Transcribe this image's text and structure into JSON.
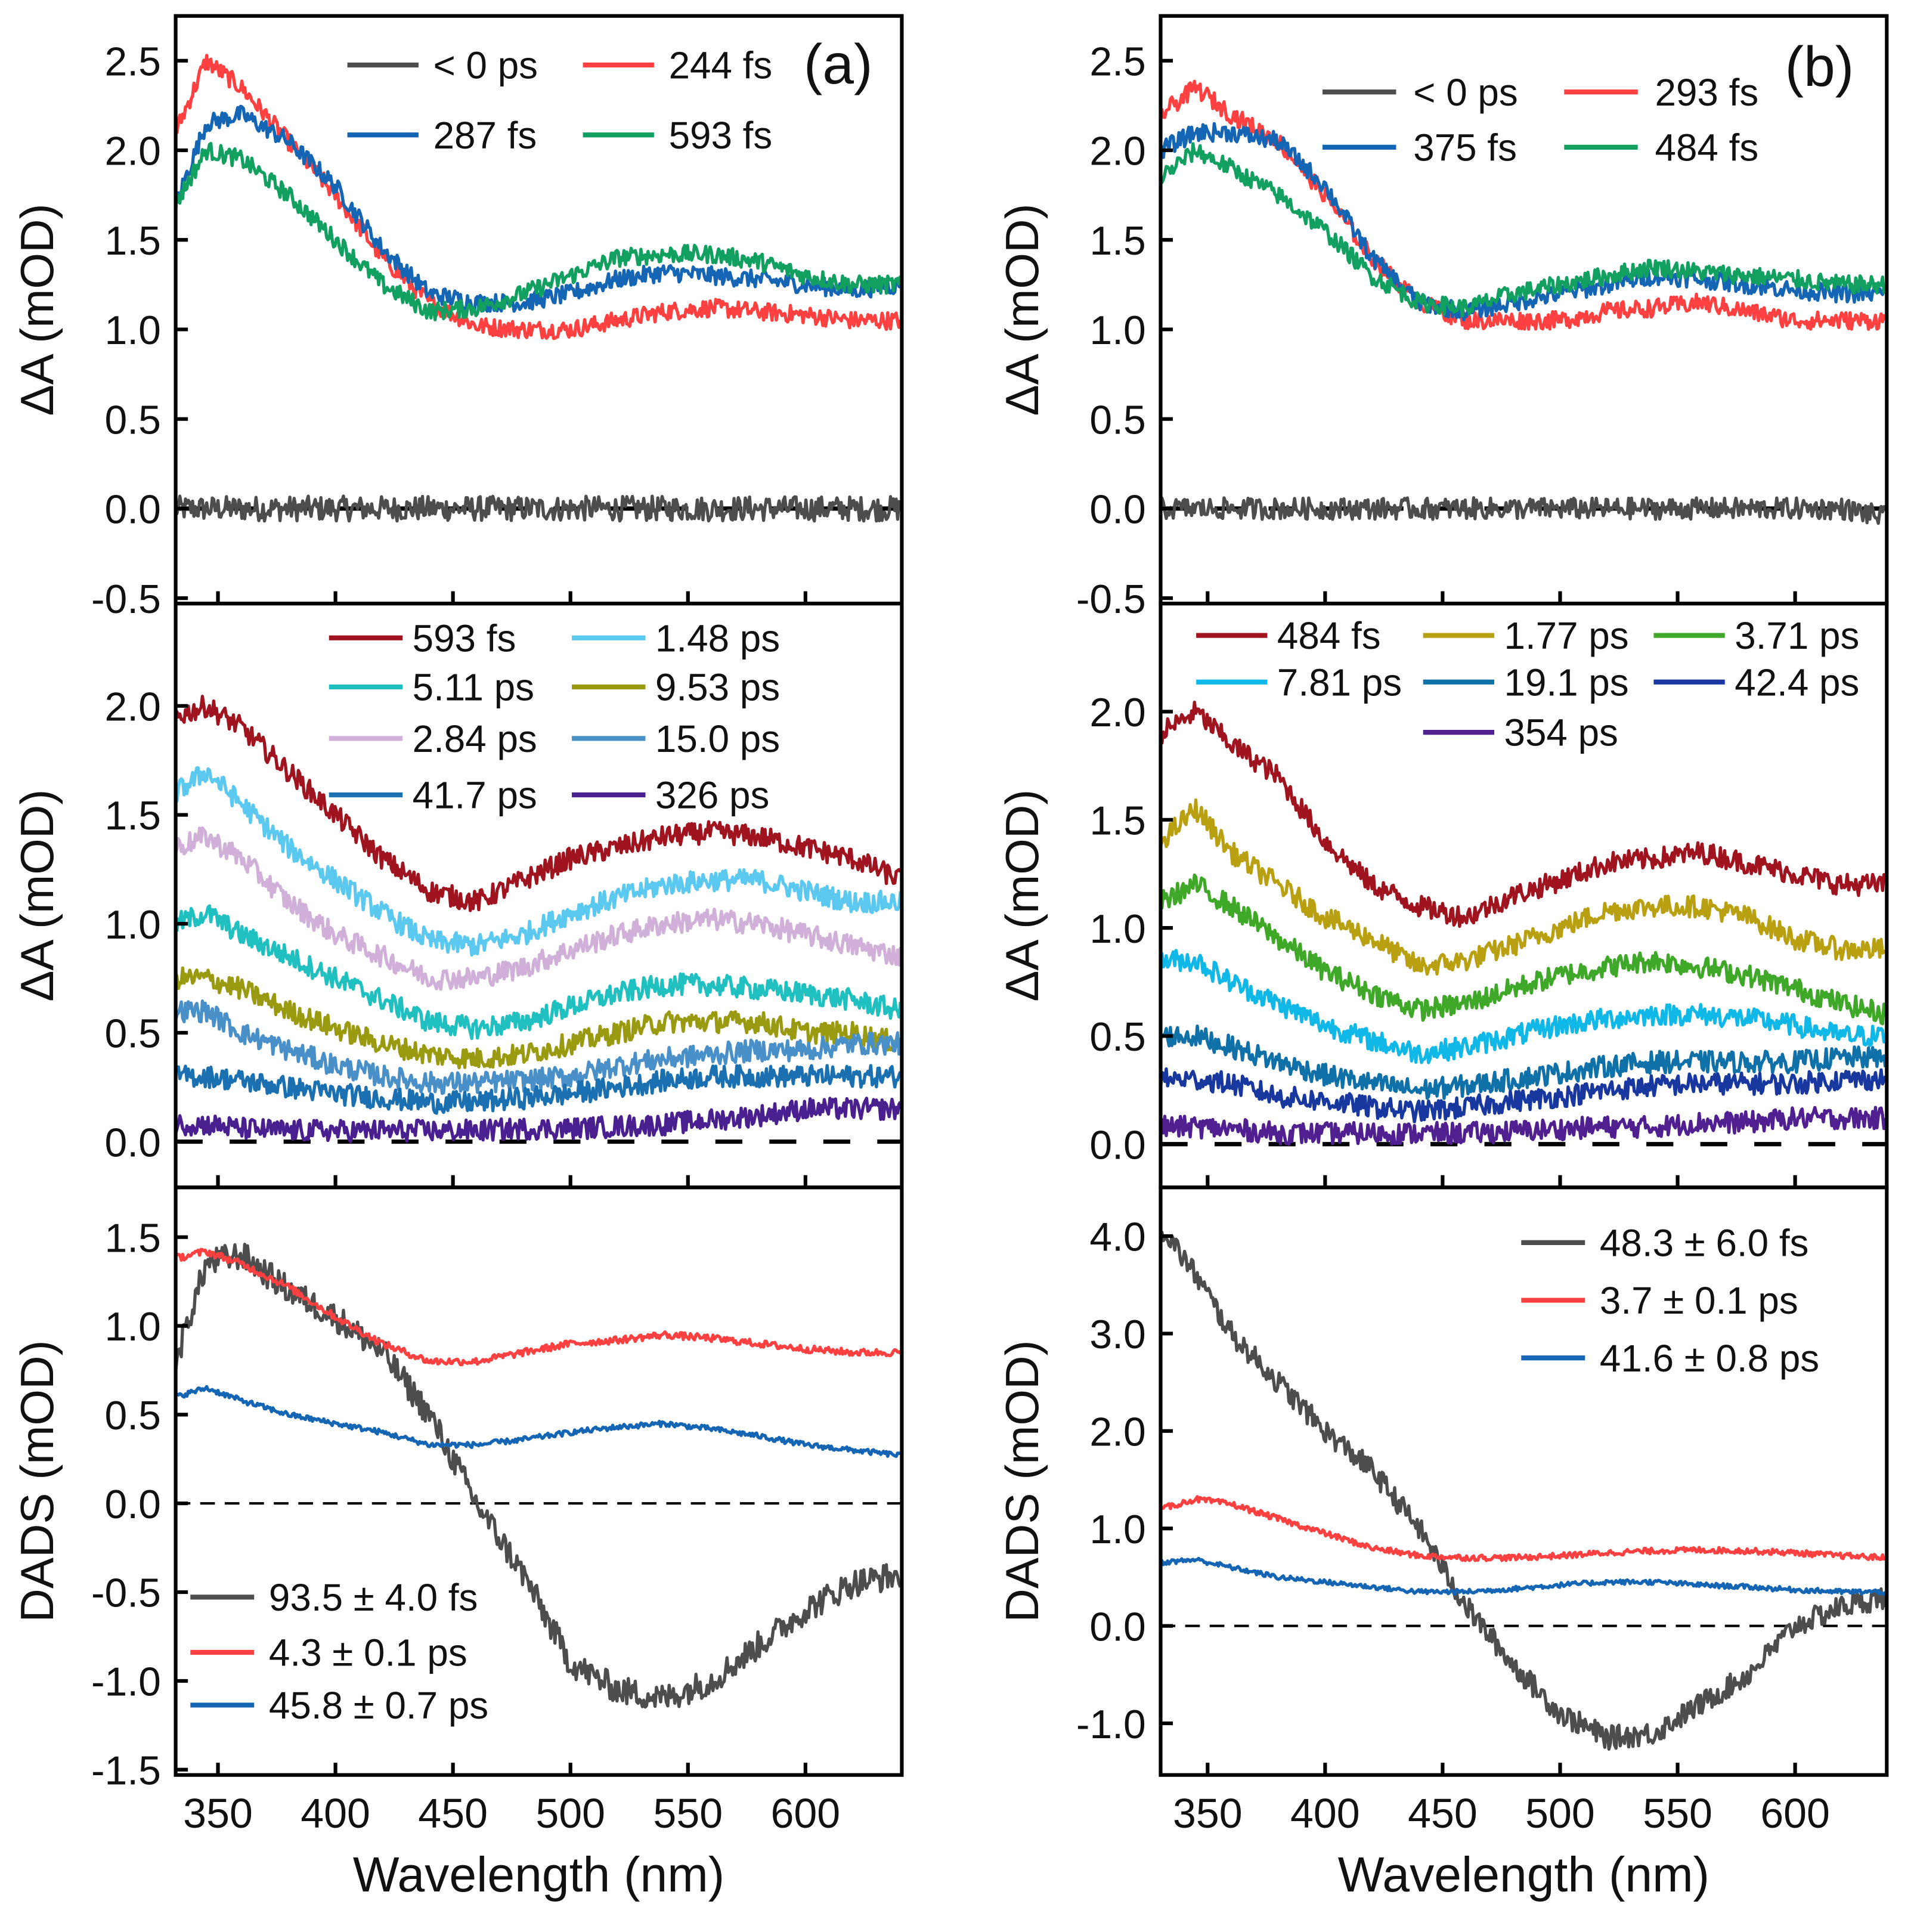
{
  "chart_data": [
    {
      "id": "a_top",
      "type": "line",
      "panel_label": "(a)",
      "xlim": [
        332,
        641
      ],
      "ylim": [
        -0.53,
        2.75
      ],
      "xticks": [
        "350",
        "400",
        "450",
        "500",
        "550",
        "600"
      ],
      "yticks": [
        "-0.5",
        "0.0",
        "0.5",
        "1.0",
        "1.5",
        "2.0",
        "2.5"
      ],
      "ylabel": "ΔA (mOD)",
      "xlabel": "",
      "zero_line": "dashed",
      "x": [
        332,
        345,
        360,
        380,
        400,
        420,
        440,
        460,
        480,
        500,
        520,
        540,
        560,
        580,
        600,
        620,
        641
      ],
      "series": [
        {
          "name": "< 0 ps",
          "color": "#4d4d4d",
          "noise": 0.07,
          "values": [
            0,
            0,
            0,
            0,
            0,
            0,
            0,
            0,
            0,
            0,
            0,
            0,
            0,
            0,
            0,
            0,
            0
          ]
        },
        {
          "name": "244 fs",
          "color": "#ff4040",
          "noise": 0.05,
          "values": [
            2.1,
            2.5,
            2.35,
            2.05,
            1.75,
            1.4,
            1.15,
            1.02,
            1.0,
            1.0,
            1.05,
            1.1,
            1.12,
            1.1,
            1.08,
            1.05,
            1.05
          ]
        },
        {
          "name": "287 fs",
          "color": "#1565b5",
          "noise": 0.05,
          "values": [
            1.7,
            2.15,
            2.2,
            2.05,
            1.8,
            1.45,
            1.2,
            1.15,
            1.15,
            1.2,
            1.28,
            1.32,
            1.3,
            1.28,
            1.25,
            1.22,
            1.25
          ]
        },
        {
          "name": "593 fs",
          "color": "#12a060",
          "noise": 0.05,
          "values": [
            1.7,
            2.0,
            1.95,
            1.75,
            1.5,
            1.25,
            1.1,
            1.12,
            1.2,
            1.3,
            1.4,
            1.42,
            1.42,
            1.38,
            1.3,
            1.25,
            1.25
          ]
        }
      ]
    },
    {
      "id": "a_mid",
      "type": "line",
      "xlim": [
        332,
        641
      ],
      "ylim": [
        -0.21,
        2.47
      ],
      "xticks": [
        "350",
        "400",
        "450",
        "500",
        "550",
        "600"
      ],
      "yticks": [
        "0.0",
        "0.5",
        "1.0",
        "1.5",
        "2.0"
      ],
      "ylabel": "ΔA (mOD)",
      "xlabel": "",
      "zero_line": "dashed",
      "x": [
        332,
        345,
        360,
        380,
        400,
        420,
        440,
        460,
        480,
        500,
        520,
        540,
        560,
        580,
        600,
        620,
        641
      ],
      "series": [
        {
          "name": "593 fs",
          "color": "#a01420",
          "noise": 0.05,
          "values": [
            1.95,
            2.0,
            1.9,
            1.7,
            1.5,
            1.3,
            1.15,
            1.1,
            1.2,
            1.3,
            1.35,
            1.4,
            1.42,
            1.4,
            1.35,
            1.3,
            1.2
          ]
        },
        {
          "name": "1.48 ps",
          "color": "#5bc8f0",
          "noise": 0.05,
          "values": [
            1.6,
            1.7,
            1.55,
            1.35,
            1.2,
            1.05,
            0.92,
            0.9,
            0.95,
            1.05,
            1.12,
            1.18,
            1.2,
            1.2,
            1.15,
            1.1,
            1.1
          ]
        },
        {
          "name": "5.11 ps",
          "color": "#20c0c0",
          "noise": 0.05,
          "values": [
            1.0,
            1.05,
            0.95,
            0.85,
            0.75,
            0.65,
            0.55,
            0.52,
            0.55,
            0.62,
            0.68,
            0.72,
            0.72,
            0.7,
            0.68,
            0.65,
            0.6
          ]
        },
        {
          "name": "9.53 ps",
          "color": "#9a9a10",
          "noise": 0.05,
          "values": [
            0.75,
            0.75,
            0.7,
            0.6,
            0.52,
            0.45,
            0.4,
            0.38,
            0.4,
            0.45,
            0.5,
            0.55,
            0.55,
            0.55,
            0.5,
            0.5,
            0.45
          ]
        },
        {
          "name": "2.84 ps",
          "color": "#d0b0d8",
          "noise": 0.05,
          "values": [
            1.35,
            1.4,
            1.3,
            1.1,
            0.95,
            0.85,
            0.75,
            0.75,
            0.8,
            0.88,
            0.95,
            1.0,
            1.02,
            1.0,
            0.95,
            0.9,
            0.85
          ]
        },
        {
          "name": "15.0 ps",
          "color": "#4a90c8",
          "noise": 0.05,
          "values": [
            0.6,
            0.6,
            0.5,
            0.42,
            0.35,
            0.3,
            0.27,
            0.27,
            0.28,
            0.3,
            0.35,
            0.38,
            0.4,
            0.42,
            0.42,
            0.45,
            0.45
          ]
        },
        {
          "name": "41.7 ps",
          "color": "#1a70b0",
          "noise": 0.05,
          "values": [
            0.3,
            0.3,
            0.28,
            0.25,
            0.22,
            0.2,
            0.18,
            0.18,
            0.2,
            0.22,
            0.25,
            0.28,
            0.3,
            0.3,
            0.3,
            0.3,
            0.3
          ]
        },
        {
          "name": "326 ps",
          "color": "#4a2090",
          "noise": 0.05,
          "values": [
            0.08,
            0.08,
            0.06,
            0.05,
            0.05,
            0.05,
            0.05,
            0.05,
            0.06,
            0.06,
            0.07,
            0.08,
            0.1,
            0.12,
            0.15,
            0.15,
            0.15
          ]
        }
      ]
    },
    {
      "id": "a_bot",
      "type": "line",
      "xlim": [
        332,
        641
      ],
      "ylim": [
        -1.53,
        1.78
      ],
      "xticks": [
        "350",
        "400",
        "450",
        "500",
        "550",
        "600"
      ],
      "yticks": [
        "-1.5",
        "-1.0",
        "-0.5",
        "0.0",
        "0.5",
        "1.0",
        "1.5"
      ],
      "ylabel": "DADS (mOD)",
      "xlabel": "Wavelength (nm)",
      "zero_line": "thin-dashed",
      "x": [
        332,
        345,
        360,
        380,
        400,
        420,
        440,
        460,
        480,
        500,
        520,
        540,
        560,
        580,
        600,
        620,
        641
      ],
      "series": [
        {
          "name": "93.5 ± 4.0 fs",
          "color": "#4d4d4d",
          "noise": 0.08,
          "values": [
            0.8,
            1.35,
            1.4,
            1.2,
            1.05,
            0.85,
            0.5,
            0.0,
            -0.4,
            -0.9,
            -1.05,
            -1.1,
            -1.0,
            -0.8,
            -0.6,
            -0.45,
            -0.4
          ]
        },
        {
          "name": "4.3 ± 0.1 ps",
          "color": "#ff4040",
          "noise": 0.02,
          "values": [
            1.38,
            1.42,
            1.35,
            1.22,
            1.05,
            0.9,
            0.8,
            0.8,
            0.85,
            0.9,
            0.92,
            0.95,
            0.93,
            0.9,
            0.87,
            0.85,
            0.85
          ]
        },
        {
          "name": "45.8 ± 0.7 ps",
          "color": "#1565b5",
          "noise": 0.015,
          "values": [
            0.6,
            0.65,
            0.58,
            0.5,
            0.45,
            0.4,
            0.33,
            0.33,
            0.36,
            0.4,
            0.43,
            0.45,
            0.42,
            0.38,
            0.33,
            0.3,
            0.27
          ]
        }
      ]
    },
    {
      "id": "b_top",
      "type": "line",
      "panel_label": "(b)",
      "xlim": [
        330,
        639
      ],
      "ylim": [
        -0.53,
        2.75
      ],
      "xticks": [
        "350",
        "400",
        "450",
        "500",
        "550",
        "600"
      ],
      "yticks": [
        "-0.5",
        "0.0",
        "0.5",
        "1.0",
        "1.5",
        "2.0",
        "2.5"
      ],
      "ylabel": "ΔA (mOD)",
      "xlabel": "",
      "zero_line": "dashed",
      "x": [
        330,
        345,
        360,
        380,
        400,
        420,
        440,
        460,
        480,
        500,
        520,
        540,
        560,
        580,
        600,
        620,
        639
      ],
      "series": [
        {
          "name": "< 0 ps",
          "color": "#4d4d4d",
          "noise": 0.06,
          "values": [
            0,
            0,
            0,
            0,
            0,
            0,
            0,
            0,
            0,
            0,
            0,
            0,
            0,
            0,
            0,
            0,
            -0.05
          ]
        },
        {
          "name": "293 fs",
          "color": "#ff4040",
          "noise": 0.05,
          "values": [
            2.2,
            2.35,
            2.2,
            2.05,
            1.75,
            1.4,
            1.15,
            1.05,
            1.05,
            1.05,
            1.1,
            1.12,
            1.15,
            1.1,
            1.05,
            1.05,
            1.05
          ]
        },
        {
          "name": "375 fs",
          "color": "#1565b5",
          "noise": 0.05,
          "values": [
            2.0,
            2.1,
            2.1,
            2.05,
            1.8,
            1.4,
            1.15,
            1.1,
            1.15,
            1.2,
            1.25,
            1.3,
            1.28,
            1.25,
            1.22,
            1.2,
            1.2
          ]
        },
        {
          "name": "484 fs",
          "color": "#12a060",
          "noise": 0.05,
          "values": [
            1.85,
            2.0,
            1.9,
            1.75,
            1.55,
            1.3,
            1.15,
            1.12,
            1.2,
            1.25,
            1.3,
            1.35,
            1.32,
            1.3,
            1.28,
            1.25,
            1.25
          ]
        }
      ]
    },
    {
      "id": "b_mid",
      "type": "line",
      "xlim": [
        330,
        639
      ],
      "ylim": [
        -0.2,
        2.5
      ],
      "xticks": [
        "350",
        "400",
        "450",
        "500",
        "550",
        "600"
      ],
      "yticks": [
        "0.0",
        "0.5",
        "1.0",
        "1.5",
        "2.0"
      ],
      "ylabel": "ΔA (mOD)",
      "xlabel": "",
      "zero_line": "dashed",
      "x": [
        330,
        345,
        360,
        380,
        400,
        420,
        440,
        460,
        480,
        500,
        520,
        540,
        560,
        580,
        600,
        620,
        639
      ],
      "series": [
        {
          "name": "484 fs",
          "color": "#a01420",
          "noise": 0.05,
          "values": [
            1.9,
            2.0,
            1.85,
            1.7,
            1.4,
            1.2,
            1.1,
            1.05,
            1.15,
            1.22,
            1.3,
            1.32,
            1.35,
            1.3,
            1.25,
            1.2,
            1.2
          ]
        },
        {
          "name": "1.77 ps",
          "color": "#b8a010",
          "noise": 0.05,
          "values": [
            1.4,
            1.55,
            1.35,
            1.2,
            1.05,
            0.95,
            0.82,
            0.85,
            0.92,
            1.0,
            1.08,
            1.1,
            1.1,
            1.05,
            0.95,
            0.9,
            0.9
          ]
        },
        {
          "name": "3.71 ps",
          "color": "#40a828",
          "noise": 0.05,
          "values": [
            1.12,
            1.2,
            1.1,
            0.95,
            0.8,
            0.7,
            0.62,
            0.65,
            0.72,
            0.78,
            0.82,
            0.85,
            0.82,
            0.78,
            0.72,
            0.65,
            0.6
          ]
        },
        {
          "name": "7.81 ps",
          "color": "#10b8e8",
          "noise": 0.05,
          "values": [
            0.85,
            0.85,
            0.75,
            0.65,
            0.55,
            0.48,
            0.42,
            0.45,
            0.5,
            0.55,
            0.58,
            0.6,
            0.6,
            0.58,
            0.55,
            0.5,
            0.5
          ]
        },
        {
          "name": "19.1 ps",
          "color": "#1070a8",
          "noise": 0.05,
          "values": [
            0.5,
            0.5,
            0.45,
            0.38,
            0.32,
            0.28,
            0.25,
            0.27,
            0.3,
            0.33,
            0.36,
            0.38,
            0.38,
            0.38,
            0.38,
            0.4,
            0.4
          ]
        },
        {
          "name": "42.4 ps",
          "color": "#1838a0",
          "noise": 0.05,
          "values": [
            0.3,
            0.3,
            0.28,
            0.22,
            0.2,
            0.17,
            0.15,
            0.17,
            0.2,
            0.22,
            0.25,
            0.27,
            0.28,
            0.28,
            0.28,
            0.3,
            0.3
          ]
        },
        {
          "name": "354 ps",
          "color": "#502090",
          "noise": 0.05,
          "values": [
            0.08,
            0.08,
            0.07,
            0.05,
            0.05,
            0.05,
            0.05,
            0.05,
            0.06,
            0.07,
            0.08,
            0.08,
            0.1,
            0.1,
            0.12,
            0.12,
            0.12
          ]
        }
      ]
    },
    {
      "id": "b_bot",
      "type": "line",
      "xlim": [
        330,
        639
      ],
      "ylim": [
        -1.53,
        4.5
      ],
      "xticks": [
        "350",
        "400",
        "450",
        "500",
        "550",
        "600"
      ],
      "yticks": [
        "-1.0",
        "0.0",
        "1.0",
        "2.0",
        "3.0",
        "4.0"
      ],
      "ylabel": "DADS (mOD)",
      "xlabel": "Wavelength (nm)",
      "zero_line": "thin-dashed",
      "x": [
        330,
        345,
        360,
        380,
        400,
        420,
        440,
        460,
        480,
        500,
        520,
        540,
        560,
        580,
        600,
        620,
        639
      ],
      "series": [
        {
          "name": "48.3 ± 6.0 fs",
          "color": "#4d4d4d",
          "noise": 0.12,
          "values": [
            4.1,
            3.6,
            3.0,
            2.5,
            2.0,
            1.6,
            1.0,
            0.2,
            -0.4,
            -0.9,
            -1.15,
            -1.1,
            -0.8,
            -0.5,
            0.0,
            0.2,
            0.3
          ]
        },
        {
          "name": "3.7 ± 0.1 ps",
          "color": "#ff4040",
          "noise": 0.03,
          "values": [
            1.2,
            1.3,
            1.25,
            1.1,
            0.95,
            0.8,
            0.72,
            0.7,
            0.7,
            0.72,
            0.75,
            0.77,
            0.78,
            0.77,
            0.75,
            0.72,
            0.7
          ]
        },
        {
          "name": "41.6 ± 0.8 ps",
          "color": "#1565b5",
          "noise": 0.025,
          "values": [
            0.65,
            0.68,
            0.6,
            0.5,
            0.45,
            0.4,
            0.35,
            0.35,
            0.38,
            0.42,
            0.45,
            0.45,
            0.42,
            0.4,
            0.37,
            0.35,
            0.35
          ]
        }
      ]
    }
  ]
}
